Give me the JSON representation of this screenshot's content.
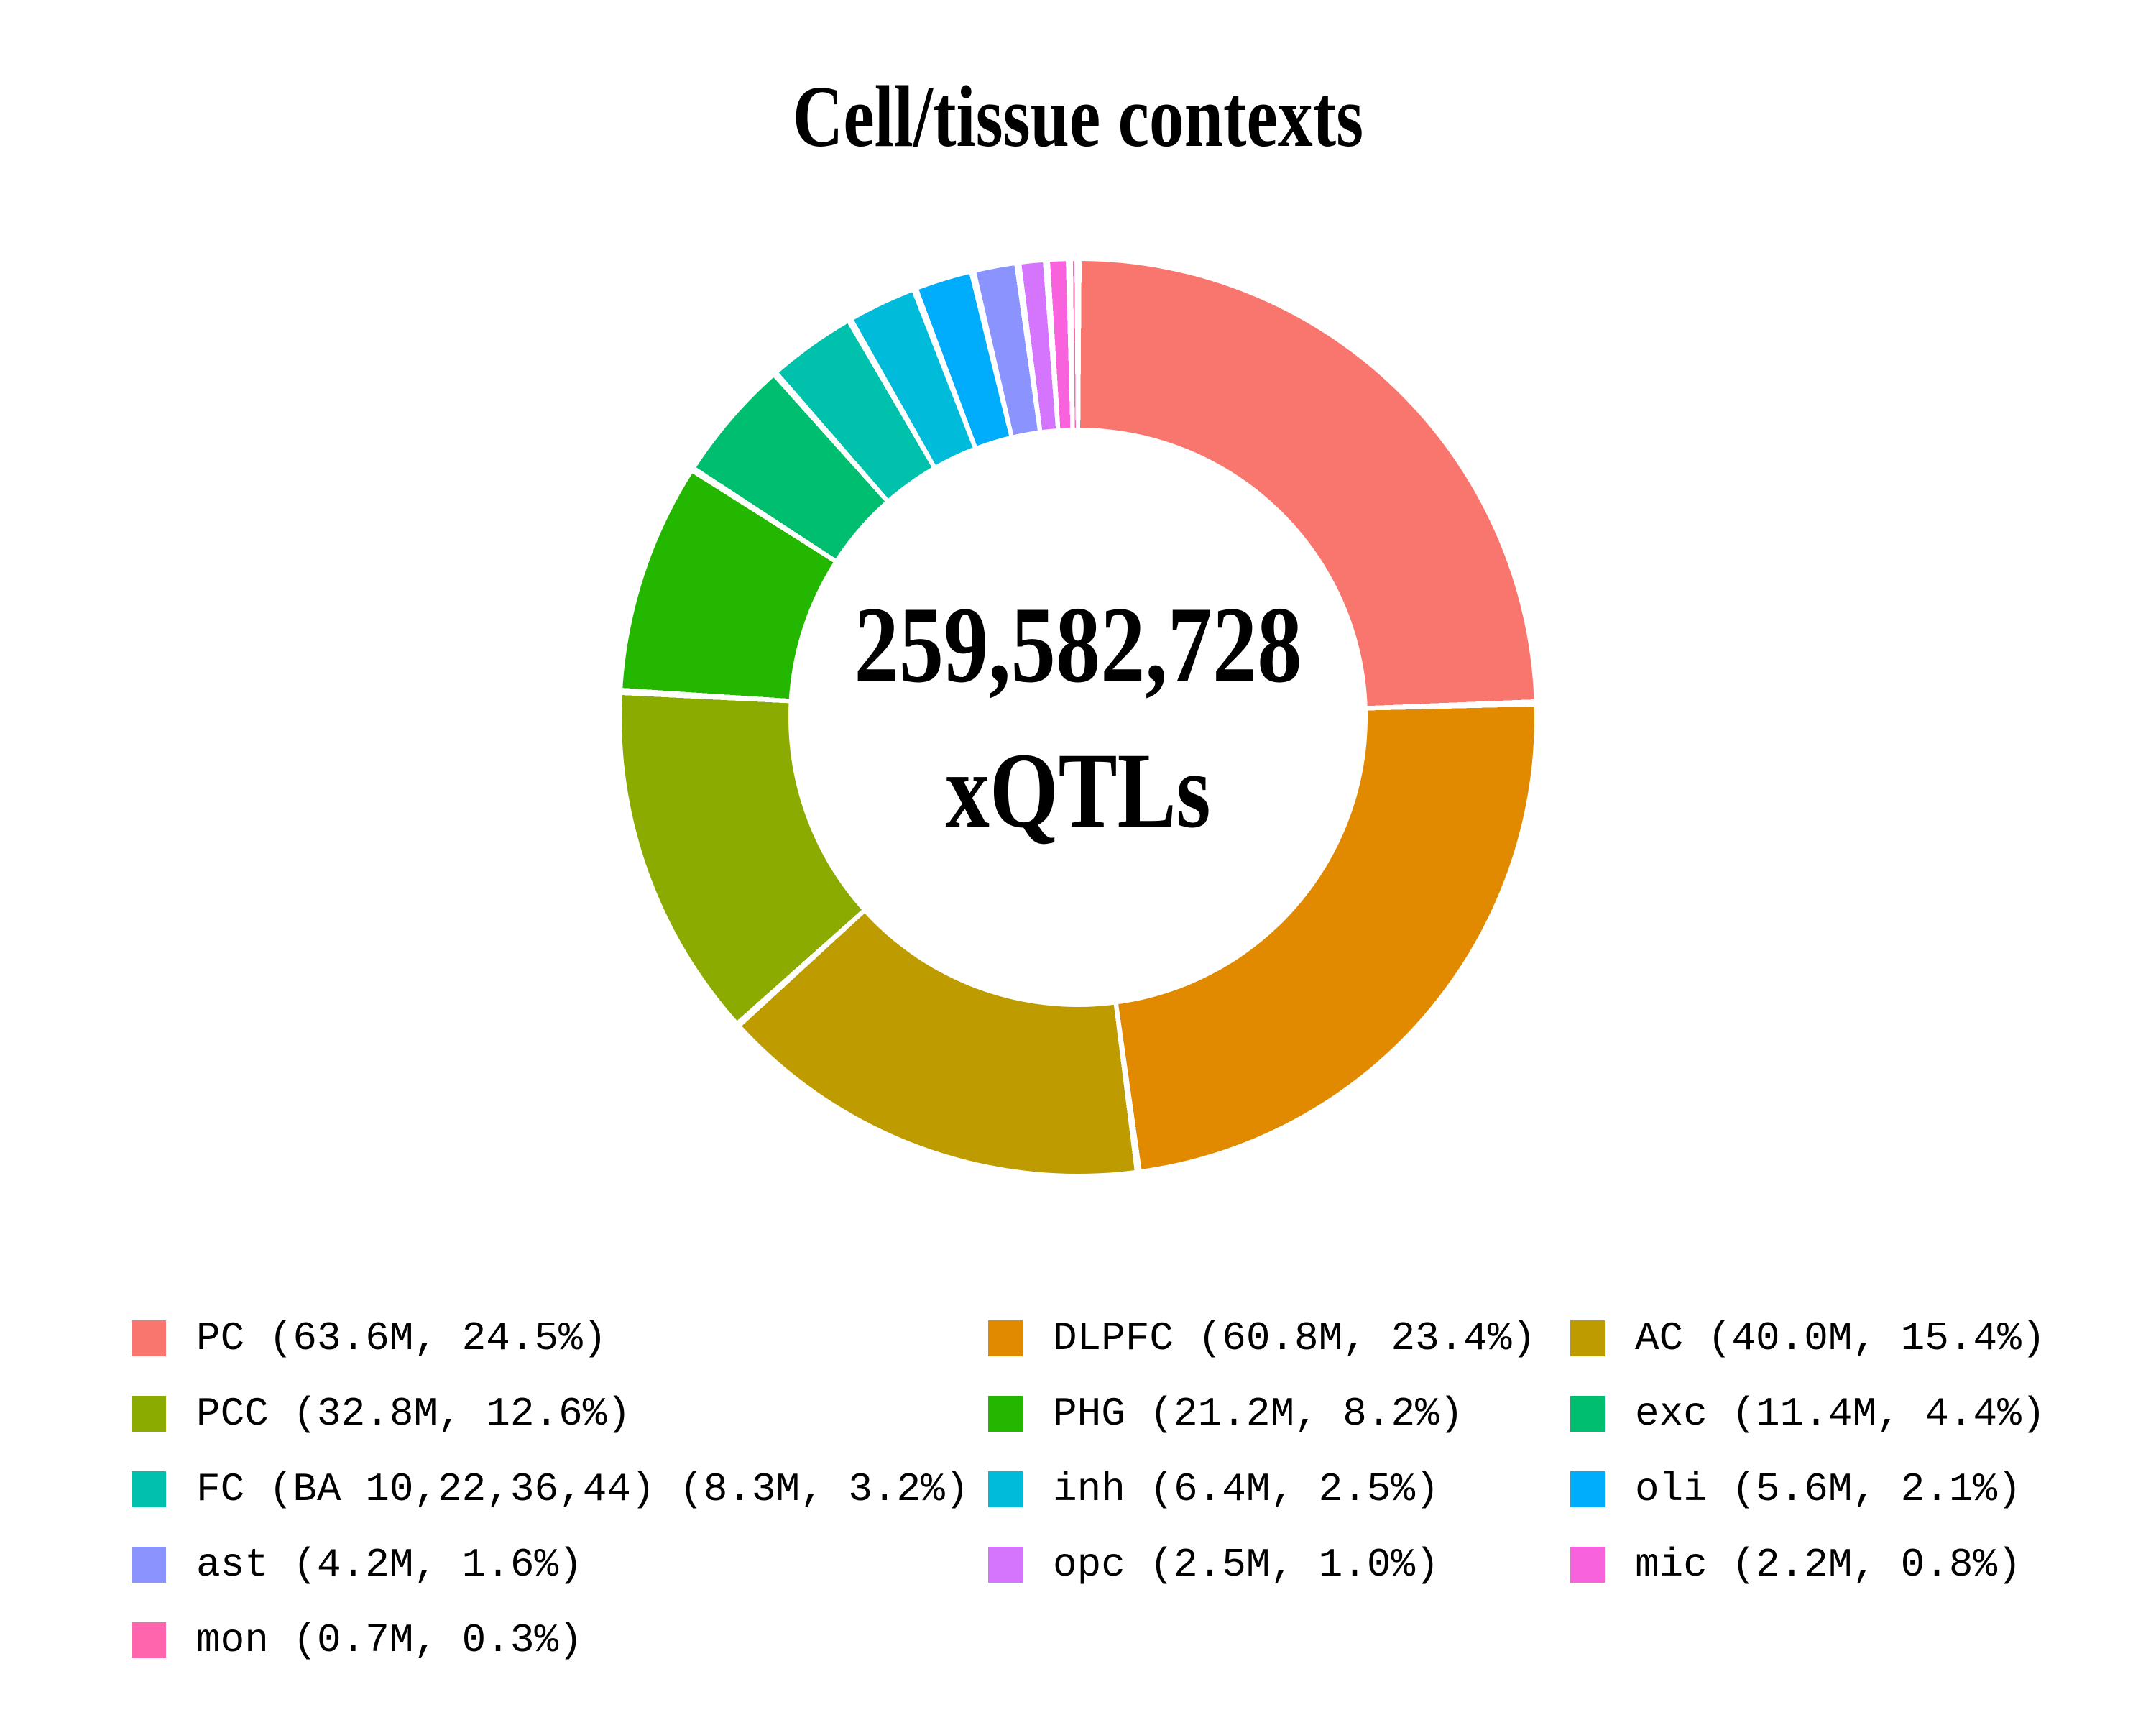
{
  "chart_data": {
    "type": "pie",
    "donut": true,
    "title": "Cell/tissue contexts",
    "center_label": [
      "259,582,728",
      "xQTLs"
    ],
    "categories": [
      "PC",
      "DLPFC",
      "AC",
      "PCC",
      "PHG",
      "exc",
      "FC (BA 10,22,36,44)",
      "inh",
      "oli",
      "ast",
      "opc",
      "mic",
      "mon"
    ],
    "values_millions": [
      63.6,
      60.8,
      40.0,
      32.8,
      21.2,
      11.4,
      8.3,
      6.4,
      5.6,
      4.2,
      2.5,
      2.2,
      0.7
    ],
    "percents": [
      24.5,
      23.4,
      15.4,
      12.6,
      8.2,
      4.4,
      3.2,
      2.5,
      2.1,
      1.6,
      1.0,
      0.8,
      0.3
    ],
    "colors": [
      "#F8766D",
      "#E18A00",
      "#BE9C00",
      "#8CAB00",
      "#24B700",
      "#00BE70",
      "#00C1AB",
      "#00BBDA",
      "#00ACFC",
      "#8B93FF",
      "#D575FE",
      "#F962DD",
      "#FF65AC"
    ],
    "legend_labels": [
      "PC (63.6M, 24.5%)",
      "DLPFC (60.8M, 23.4%)",
      "AC (40.0M, 15.4%)",
      "PCC (32.8M, 12.6%)",
      "PHG (21.2M, 8.2%)",
      "exc (11.4M, 4.4%)",
      "FC (BA 10,22,36,44) (8.3M, 3.2%)",
      "inh (6.4M, 2.5%)",
      "oli (5.6M, 2.1%)",
      "ast (4.2M, 1.6%)",
      "opc (2.5M, 1.0%)",
      "mic (2.2M, 0.8%)",
      "mon (0.7M, 0.3%)"
    ],
    "legend_position": "bottom",
    "start_angle_deg": 0,
    "direction": "clockwise",
    "slice_gap_color": "#ffffff"
  }
}
